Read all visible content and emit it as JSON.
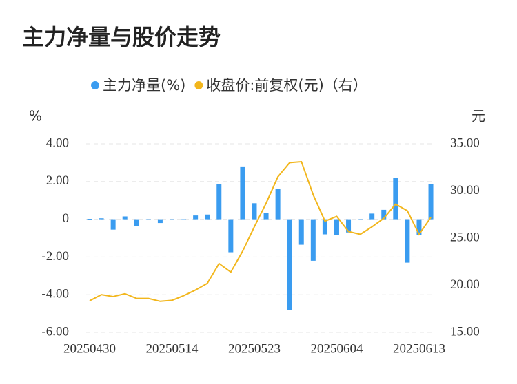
{
  "chart_data": {
    "type": "bar_line",
    "title": "主力净量与股价走势",
    "y_axis_label": "%",
    "y2_axis_label": "元",
    "categories": [
      "20250430",
      null,
      null,
      null,
      null,
      null,
      null,
      "20250514",
      null,
      null,
      null,
      null,
      null,
      null,
      "20250523",
      null,
      null,
      null,
      null,
      null,
      null,
      "20250604",
      null,
      null,
      null,
      null,
      null,
      null,
      "20250613",
      null
    ],
    "series": [
      {
        "name": "主力净量(%)",
        "type": "bar",
        "color": "#3a9cf0",
        "values": [
          0.02,
          0.05,
          -0.55,
          0.15,
          -0.35,
          -0.05,
          -0.2,
          -0.05,
          -0.05,
          0.2,
          0.25,
          1.85,
          -1.75,
          2.8,
          0.85,
          0.35,
          1.6,
          -4.8,
          -1.35,
          -2.2,
          -0.8,
          -0.85,
          -0.7,
          -0.05,
          0.3,
          0.5,
          2.2,
          -2.3,
          -0.85,
          1.85
        ]
      },
      {
        "name": "收盘价:前复权(元)（右）",
        "type": "line",
        "axis": "y2",
        "color": "#f2b61c",
        "values": [
          18.36,
          19.0,
          18.8,
          19.1,
          18.6,
          18.6,
          18.3,
          18.4,
          18.9,
          19.5,
          20.2,
          22.3,
          21.4,
          23.6,
          26.2,
          28.7,
          31.5,
          33.0,
          33.1,
          29.6,
          26.8,
          27.3,
          25.7,
          25.4,
          26.2,
          27.1,
          28.6,
          27.9,
          25.4,
          27.2
        ]
      }
    ],
    "ylim": [
      -6,
      4
    ],
    "yticks": [
      {
        "value": -6,
        "label": "-6.00"
      },
      {
        "value": -4,
        "label": "-4.00"
      },
      {
        "value": -2,
        "label": "-2.00"
      },
      0,
      {
        "value": 2,
        "label": "2.00"
      },
      {
        "value": 4,
        "label": "4.00"
      }
    ],
    "y2lim": [
      15,
      35
    ],
    "y2ticks": [
      {
        "value": 15,
        "label": "15.00"
      },
      {
        "value": 20,
        "label": "20.00"
      },
      {
        "value": 25,
        "label": "25.00"
      },
      {
        "value": 30,
        "label": "30.00"
      },
      {
        "value": 35,
        "label": "35.00"
      }
    ],
    "grid": true
  }
}
